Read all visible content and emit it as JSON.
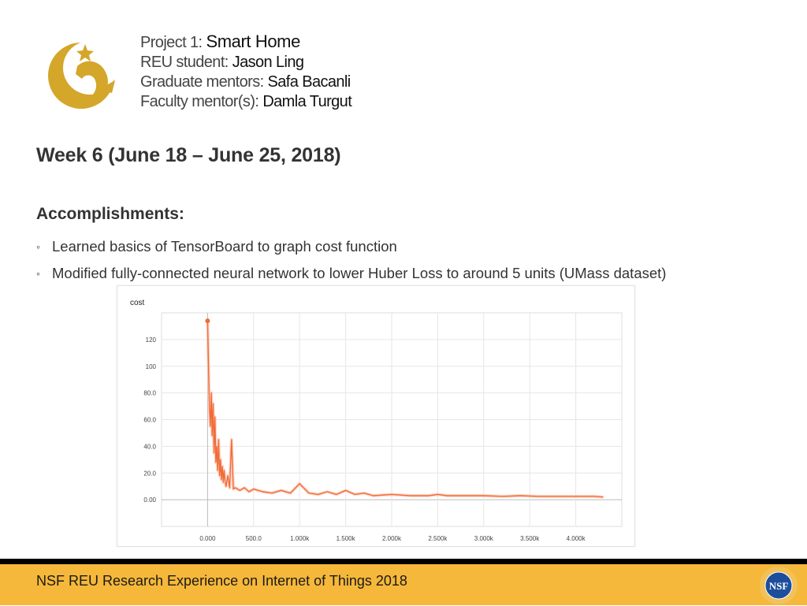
{
  "header": {
    "project_prefix": "Project 1: ",
    "project_name": "Smart Home",
    "student_prefix": "REU student: ",
    "student_name": "Jason Ling",
    "grad_prefix": "Graduate mentors: ",
    "grad_name": "Safa Bacanli",
    "faculty_prefix": "Faculty mentor(s): ",
    "faculty_name": "Damla Turgut"
  },
  "week_title": "Week 6 (June 18 – June 25, 2018)",
  "accomplishments": {
    "heading": "Accomplishments:",
    "items": [
      "Learned basics of TensorBoard to graph cost function",
      "Modified fully-connected neural network to lower Huber Loss to around 5 units (UMass dataset)"
    ]
  },
  "footer": {
    "text": "NSF REU Research Experience on Internet of Things 2018",
    "logo_text": "NSF"
  },
  "colors": {
    "accent": "#f6b83a",
    "logo_gold": "#d4a62a",
    "series": "#f26b38",
    "series_light": "#fbc8b4"
  },
  "chart_data": {
    "type": "line",
    "title": "cost",
    "xlim": [
      -500,
      4500
    ],
    "ylim": [
      -20,
      140
    ],
    "x_ticks": [
      0,
      500,
      1000,
      1500,
      2000,
      2500,
      3000,
      3500,
      4000
    ],
    "x_tick_labels": [
      "0.000",
      "500.0",
      "1.000k",
      "1.500k",
      "2.000k",
      "2.500k",
      "3.000k",
      "3.500k",
      "4.000k"
    ],
    "y_ticks": [
      0,
      20,
      40,
      60,
      80,
      100,
      120
    ],
    "y_tick_labels": [
      "0.00",
      "20.0",
      "40.0",
      "60.0",
      "80.0",
      "100",
      "120"
    ],
    "grid": true,
    "series": [
      {
        "x": [
          0,
          10,
          20,
          30,
          40,
          50,
          60,
          70,
          80,
          90,
          100,
          110,
          120,
          130,
          140,
          150,
          160,
          170,
          180,
          190,
          200,
          220,
          240,
          260,
          280,
          300,
          350,
          400,
          450,
          500,
          600,
          700,
          800,
          900,
          1000,
          1100,
          1200,
          1300,
          1400,
          1500,
          1600,
          1700,
          1800,
          2000,
          2200,
          2400,
          2500,
          2600,
          2800,
          3000,
          3200,
          3400,
          3600,
          3800,
          4000,
          4200,
          4300
        ],
        "y": [
          134,
          100,
          70,
          55,
          80,
          48,
          72,
          35,
          62,
          28,
          40,
          22,
          45,
          18,
          30,
          15,
          25,
          13,
          22,
          14,
          10,
          18,
          9,
          45,
          8,
          9,
          7,
          9,
          6,
          8,
          6,
          5,
          7,
          5,
          12,
          5,
          4,
          6,
          4,
          7,
          4,
          5,
          3,
          4,
          3,
          3,
          4,
          3,
          3,
          3,
          2.5,
          3,
          2.5,
          2.5,
          2.5,
          2.5,
          2
        ]
      }
    ]
  }
}
